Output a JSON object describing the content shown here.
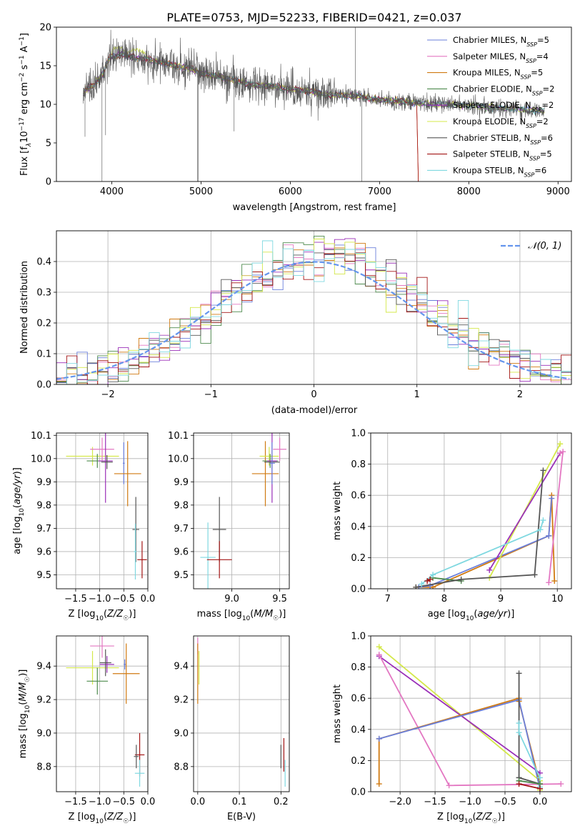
{
  "figure": {
    "title": "PLATE=0753, MJD=52233, FIBERID=0421, z=0.037"
  },
  "series_colors": {
    "Chabrier MILES": "#6a7fdb",
    "Salpeter MILES": "#e377c2",
    "Kroupa MILES": "#d07a12",
    "Chabrier ELODIE": "#4d8a4d",
    "Salpeter ELODIE": "#9a2fb8",
    "Kroupa ELODIE": "#d4e84a",
    "Chabrier STELIB": "#555555",
    "Salpeter STELIB": "#a31515",
    "Kroupa STELIB": "#7fd8e0"
  },
  "chart_data": [
    {
      "id": "spectrum",
      "type": "line",
      "xlabel": "wavelength [Angstrom, rest frame]",
      "ylabel_parts": [
        "Flux [f",
        "λ",
        "10",
        "−17",
        " erg cm",
        "−2",
        " s",
        "−1",
        " A",
        "−1",
        "]"
      ],
      "xlim": [
        3380,
        9150
      ],
      "ylim": [
        0,
        20
      ],
      "xticks": [
        4000,
        5000,
        6000,
        7000,
        8000,
        9000
      ],
      "yticks": [
        0,
        5,
        10,
        15,
        20
      ],
      "legend_position": "upper right",
      "legend": [
        {
          "name": "Chabrier MILES",
          "nssp": "5"
        },
        {
          "name": "Salpeter MILES",
          "nssp": "4"
        },
        {
          "name": "Kroupa MILES",
          "nssp": "5"
        },
        {
          "name": "Chabrier ELODIE",
          "nssp": "2"
        },
        {
          "name": "Salpeter ELODIE",
          "nssp": "2"
        },
        {
          "name": "Kroupa ELODIE",
          "nssp": "2"
        },
        {
          "name": "Chabrier STELIB",
          "nssp": "6"
        },
        {
          "name": "Salpeter STELIB",
          "nssp": "5"
        },
        {
          "name": "Kroupa STELIB",
          "nssp": "6"
        }
      ],
      "continuum_x": [
        3680,
        3700,
        3800,
        3900,
        3950,
        4000,
        4100,
        4200,
        4400,
        4600,
        4800,
        4900,
        5000,
        5200,
        5400,
        5600,
        5800,
        6000,
        6200,
        6400,
        6600,
        6800,
        7000,
        7200,
        7400,
        7600,
        7800,
        8000,
        8200,
        8400,
        8600,
        8800
      ],
      "continuum_y": [
        11.2,
        11.8,
        12.5,
        14.0,
        15.5,
        16.3,
        16.5,
        16.2,
        15.8,
        15.3,
        14.8,
        14.6,
        14.0,
        13.6,
        13.0,
        12.5,
        12.4,
        11.9,
        11.8,
        11.2,
        11.2,
        11.0,
        10.6,
        10.4,
        10.2,
        10.0,
        10.0,
        9.8,
        9.6,
        9.5,
        9.3,
        9.2
      ]
    },
    {
      "id": "residuals",
      "type": "histogram",
      "xlabel": "(data-model)/error",
      "ylabel": "Normed distribution",
      "xlim": [
        -2.5,
        2.5
      ],
      "ylim": [
        0,
        0.5
      ],
      "xticks": [
        -2,
        -1,
        0,
        1,
        2
      ],
      "yticks": [
        0.0,
        0.1,
        0.2,
        0.3,
        0.4
      ],
      "grid": true,
      "legend_position": "upper right",
      "reference_curve": {
        "label": "𝒩(0, 1)",
        "mean": 0,
        "std": 1
      }
    },
    {
      "id": "age_vs_Z",
      "type": "scatter",
      "xlabel": "Z [log10(Z/Z☉)]",
      "ylabel": "age [log10(age/yr)]",
      "xlim": [
        -1.9,
        0.0
      ],
      "ylim": [
        9.44,
        10.11
      ],
      "xticks": [
        -1.5,
        -1.0,
        -0.5,
        0.0
      ],
      "yticks": [
        9.5,
        9.6,
        9.7,
        9.8,
        9.9,
        10.0,
        10.1
      ],
      "grid": true,
      "points": [
        {
          "series": "Kroupa ELODIE",
          "x": -1.15,
          "y": 10.01,
          "xerr": 0.55,
          "yerr": 0.04
        },
        {
          "series": "Chabrier ELODIE",
          "x": -1.05,
          "y": 9.99,
          "xerr": 0.22,
          "yerr": 0.03
        },
        {
          "series": "Salpeter MILES",
          "x": -0.95,
          "y": 10.04,
          "xerr": 0.25,
          "yerr": 0.05
        },
        {
          "series": "Salpeter ELODIE",
          "x": -0.88,
          "y": 9.99,
          "xerr": 0.15,
          "yerr": 0.18
        },
        {
          "series": "Chabrier STELIB",
          "x": -0.85,
          "y": 9.985,
          "xerr": 0.12,
          "yerr": 0.03
        },
        {
          "series": "Chabrier MILES",
          "x": -0.5,
          "y": 9.98,
          "xerr": 0.02,
          "yerr": 0.09
        },
        {
          "series": "Kroupa MILES",
          "x": -0.42,
          "y": 9.935,
          "xerr": 0.28,
          "yerr": 0.14
        },
        {
          "series": "Chabrier STELIB",
          "x": -0.25,
          "y": 9.695,
          "xerr": 0.07,
          "yerr": 0.14
        },
        {
          "series": "Kroupa STELIB",
          "x": -0.26,
          "y": 9.6,
          "xerr": 0.03,
          "yerr": 0.12
        },
        {
          "series": "Salpeter STELIB",
          "x": -0.12,
          "y": 9.565,
          "xerr": 0.1,
          "yerr": 0.08
        }
      ]
    },
    {
      "id": "age_vs_mass",
      "type": "scatter",
      "xlabel": "mass [log10(M/M☉)]",
      "ylabel": "",
      "xlim": [
        8.6,
        9.6
      ],
      "ylim": [
        9.44,
        10.11
      ],
      "xticks": [
        8.5,
        9.0,
        9.5
      ],
      "yticks": [
        9.5,
        9.6,
        9.7,
        9.8,
        9.9,
        10.0,
        10.1
      ],
      "grid": true,
      "points": [
        {
          "series": "Kroupa STELIB",
          "x": 8.75,
          "y": 9.575,
          "xerr": 0.08,
          "yerr": 0.15
        },
        {
          "series": "Chabrier STELIB",
          "x": 8.87,
          "y": 9.695,
          "xerr": 0.07,
          "yerr": 0.14
        },
        {
          "series": "Salpeter STELIB",
          "x": 8.87,
          "y": 9.565,
          "xerr": 0.13,
          "yerr": 0.08
        },
        {
          "series": "Kroupa MILES",
          "x": 9.35,
          "y": 9.935,
          "xerr": 0.14,
          "yerr": 0.14
        },
        {
          "series": "Kroupa ELODIE",
          "x": 9.39,
          "y": 10.01,
          "xerr": 0.1,
          "yerr": 0.04
        },
        {
          "series": "Chabrier ELODIE",
          "x": 9.4,
          "y": 9.99,
          "xerr": 0.08,
          "yerr": 0.03
        },
        {
          "series": "Chabrier STELIB",
          "x": 9.42,
          "y": 9.985,
          "xerr": 0.08,
          "yerr": 0.03
        },
        {
          "series": "Salpeter ELODIE",
          "x": 9.42,
          "y": 9.99,
          "xerr": 0.05,
          "yerr": 0.18
        },
        {
          "series": "Salpeter MILES",
          "x": 9.5,
          "y": 10.04,
          "xerr": 0.07,
          "yerr": 0.05
        },
        {
          "series": "Chabrier MILES",
          "x": 9.42,
          "y": 9.98,
          "xerr": 0.03,
          "yerr": 0.09
        }
      ]
    },
    {
      "id": "mass_weight_vs_age",
      "type": "line",
      "xlabel": "age [log10(age/yr)]",
      "ylabel": "mass weight",
      "xlim": [
        6.7,
        10.25
      ],
      "ylim": [
        0,
        1.0
      ],
      "xticks": [
        7,
        8,
        9,
        10
      ],
      "yticks": [
        0.0,
        0.2,
        0.4,
        0.6,
        0.8,
        1.0
      ],
      "grid": true,
      "series": [
        {
          "name": "Kroupa MILES",
          "x": [
            7.5,
            7.8,
            9.85,
            9.9,
            9.95
          ],
          "y": [
            0.01,
            0.01,
            0.34,
            0.6,
            0.05
          ]
        },
        {
          "name": "Chabrier MILES",
          "x": [
            7.55,
            7.75,
            9.85,
            9.9
          ],
          "y": [
            0.01,
            0.02,
            0.34,
            0.58
          ]
        },
        {
          "name": "Kroupa ELODIE",
          "x": [
            8.8,
            10.05
          ],
          "y": [
            0.07,
            0.93
          ]
        },
        {
          "name": "Salpeter ELODIE",
          "x": [
            8.8,
            10.05
          ],
          "y": [
            0.12,
            0.87
          ]
        },
        {
          "name": "Chabrier ELODIE",
          "x": [
            7.8,
            8.3
          ],
          "y": [
            0.07,
            0.05
          ]
        },
        {
          "name": "Chabrier STELIB",
          "x": [
            7.5,
            8.3,
            9.6,
            9.75
          ],
          "y": [
            0.01,
            0.06,
            0.09,
            0.76
          ]
        },
        {
          "name": "Kroupa STELIB",
          "x": [
            7.6,
            7.8,
            9.7,
            9.75
          ],
          "y": [
            0.03,
            0.09,
            0.38,
            0.44
          ]
        },
        {
          "name": "Salpeter MILES",
          "x": [
            9.85,
            10.1,
            10.05
          ],
          "y": [
            0.04,
            0.88,
            0.87
          ]
        },
        {
          "name": "Salpeter STELIB",
          "x": [
            7.7,
            7.75
          ],
          "y": [
            0.05,
            0.06
          ]
        }
      ]
    },
    {
      "id": "mass_vs_Z",
      "type": "scatter",
      "xlabel": "Z [log10(Z/Z☉)]",
      "ylabel": "mass [log10(M/M☉)]",
      "xlim": [
        -1.9,
        0.0
      ],
      "ylim": [
        8.65,
        9.58
      ],
      "xticks": [
        -1.5,
        -1.0,
        -0.5,
        0.0
      ],
      "yticks": [
        8.8,
        9.0,
        9.2,
        9.4
      ],
      "grid": true,
      "points": [
        {
          "series": "Kroupa ELODIE",
          "x": -1.15,
          "y": 9.39,
          "xerr": 0.55,
          "yerr": 0.1
        },
        {
          "series": "Chabrier ELODIE",
          "x": -1.05,
          "y": 9.31,
          "xerr": 0.22,
          "yerr": 0.08
        },
        {
          "series": "Salpeter MILES",
          "x": -0.95,
          "y": 9.52,
          "xerr": 0.25,
          "yerr": 0.07
        },
        {
          "series": "Salpeter ELODIE",
          "x": -0.85,
          "y": 9.41,
          "xerr": 0.15,
          "yerr": 0.05
        },
        {
          "series": "Chabrier STELIB",
          "x": -0.88,
          "y": 9.42,
          "xerr": 0.12,
          "yerr": 0.08
        },
        {
          "series": "Chabrier MILES",
          "x": -0.48,
          "y": 9.41,
          "xerr": 0.02,
          "yerr": 0.03
        },
        {
          "series": "Kroupa MILES",
          "x": -0.45,
          "y": 9.355,
          "xerr": 0.28,
          "yerr": 0.18
        },
        {
          "series": "Salpeter STELIB",
          "x": -0.17,
          "y": 8.87,
          "xerr": 0.1,
          "yerr": 0.13
        },
        {
          "series": "Chabrier STELIB",
          "x": -0.24,
          "y": 8.86,
          "xerr": 0.05,
          "yerr": 0.07
        },
        {
          "series": "Kroupa STELIB",
          "x": -0.17,
          "y": 8.76,
          "xerr": 0.1,
          "yerr": 0.08
        }
      ]
    },
    {
      "id": "mass_vs_ebv",
      "type": "scatter",
      "xlabel": "E(B-V)",
      "ylabel": "",
      "xlim": [
        -0.01,
        0.22
      ],
      "ylim": [
        8.65,
        9.58
      ],
      "xticks": [
        0.0,
        0.1,
        0.2
      ],
      "yticks": [
        8.8,
        9.0,
        9.2,
        9.4
      ],
      "grid": true,
      "points": [
        {
          "series": "Salpeter MILES",
          "x": 0.0,
          "y": 9.52,
          "xerr": 0.0,
          "yerr": 0.05
        },
        {
          "series": "Kroupa MILES",
          "x": 0.0,
          "y": 9.355,
          "xerr": 0.0,
          "yerr": 0.18
        },
        {
          "series": "Kroupa ELODIE",
          "x": 0.003,
          "y": 9.39,
          "xerr": 0.0,
          "yerr": 0.1
        },
        {
          "series": "Chabrier STELIB",
          "x": 0.2,
          "y": 8.86,
          "xerr": 0.0,
          "yerr": 0.07
        },
        {
          "series": "Salpeter STELIB",
          "x": 0.207,
          "y": 8.87,
          "xerr": 0.0,
          "yerr": 0.1
        },
        {
          "series": "Kroupa STELIB",
          "x": 0.21,
          "y": 8.76,
          "xerr": 0.0,
          "yerr": 0.08
        }
      ]
    },
    {
      "id": "mass_weight_vs_Z",
      "type": "line",
      "xlabel": "Z [log10(Z/Z☉)]",
      "ylabel": "mass weight",
      "xlim": [
        -2.42,
        0.45
      ],
      "ylim": [
        0,
        1.0
      ],
      "xticks": [
        -2.0,
        -1.5,
        -1.0,
        -0.5,
        0.0
      ],
      "yticks": [
        0.0,
        0.2,
        0.4,
        0.6,
        0.8,
        1.0
      ],
      "grid": true,
      "series": [
        {
          "name": "Kroupa ELODIE",
          "x": [
            -2.3,
            0.0,
            0.0
          ],
          "y": [
            0.93,
            0.07,
            0.01
          ]
        },
        {
          "name": "Salpeter ELODIE",
          "x": [
            -2.3,
            0.0
          ],
          "y": [
            0.87,
            0.12
          ]
        },
        {
          "name": "Salpeter MILES",
          "x": [
            -2.3,
            -1.3,
            0.3
          ],
          "y": [
            0.88,
            0.04,
            0.05
          ]
        },
        {
          "name": "Kroupa MILES",
          "x": [
            -2.3,
            -2.3,
            -0.3,
            -0.3,
            0.0
          ],
          "y": [
            0.05,
            0.34,
            0.6,
            0.58,
            0.05
          ]
        },
        {
          "name": "Chabrier MILES",
          "x": [
            -2.3,
            -0.3,
            0.0
          ],
          "y": [
            0.34,
            0.59,
            0.02
          ]
        },
        {
          "name": "Chabrier STELIB",
          "x": [
            -0.3,
            -0.3,
            0.0
          ],
          "y": [
            0.76,
            0.09,
            0.05
          ]
        },
        {
          "name": "Kroupa STELIB",
          "x": [
            -0.3,
            -0.3,
            0.0,
            0.0
          ],
          "y": [
            0.44,
            0.38,
            0.09,
            0.03
          ]
        },
        {
          "name": "Chabrier ELODIE",
          "x": [
            -0.3,
            0.0
          ],
          "y": [
            0.07,
            0.05
          ]
        },
        {
          "name": "Salpeter STELIB",
          "x": [
            -0.3,
            0.0
          ],
          "y": [
            0.05,
            0.02
          ]
        }
      ]
    }
  ]
}
